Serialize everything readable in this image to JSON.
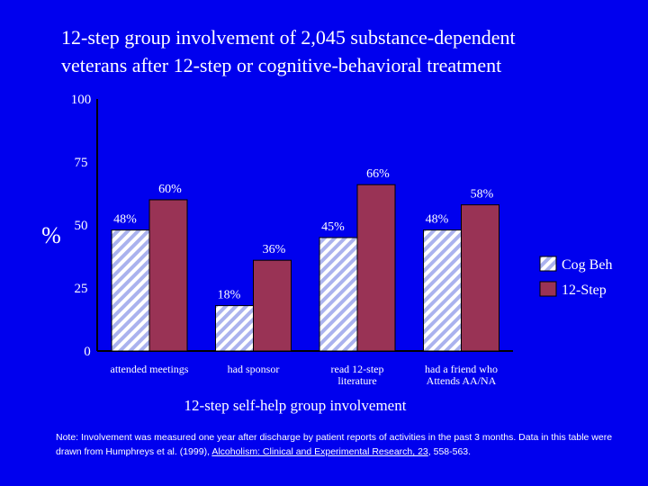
{
  "title": {
    "line1": "12-step group involvement of 2,045 substance-dependent",
    "line2": "veterans after 12-step or cognitive-behavioral treatment"
  },
  "colors": {
    "background": "#0000ee",
    "cog_beh": "#dfe3ff",
    "twelve_step": "#993355",
    "text": "#ffffff"
  },
  "chart_data": {
    "type": "bar",
    "title": "12-step group involvement of 2,045 substance-dependent veterans after 12-step or cognitive-behavioral treatment",
    "xlabel": "12-step self-help group involvement",
    "ylabel": "%",
    "ylim": [
      0,
      100
    ],
    "yticks": [
      "0",
      "25",
      "50",
      "75",
      "100"
    ],
    "categories": [
      {
        "line1": "attended meetings",
        "line2": ""
      },
      {
        "line1": "had sponsor",
        "line2": ""
      },
      {
        "line1": "read 12-step",
        "line2": "literature"
      },
      {
        "line1": "had a friend who",
        "line2": "Attends AA/NA"
      }
    ],
    "series": [
      {
        "name": "Cog Beh",
        "values": [
          48,
          18,
          45,
          48
        ],
        "labels": [
          "48%",
          "18%",
          "45%",
          "48%"
        ]
      },
      {
        "name": "12-Step",
        "values": [
          60,
          36,
          66,
          58
        ],
        "labels": [
          "60%",
          "36%",
          "66%",
          "58%"
        ]
      }
    ],
    "legend_position": "right",
    "grid": false
  },
  "note": {
    "prefix": "Note:  Involvement was measured one year after discharge by patient reports of activities in the past 3 months.  Data in this table were drawn from Humphreys et al. (1999), ",
    "journal": "Alcoholism: Clinical and Experimental Research, 23",
    "suffix": ", 558-563."
  }
}
